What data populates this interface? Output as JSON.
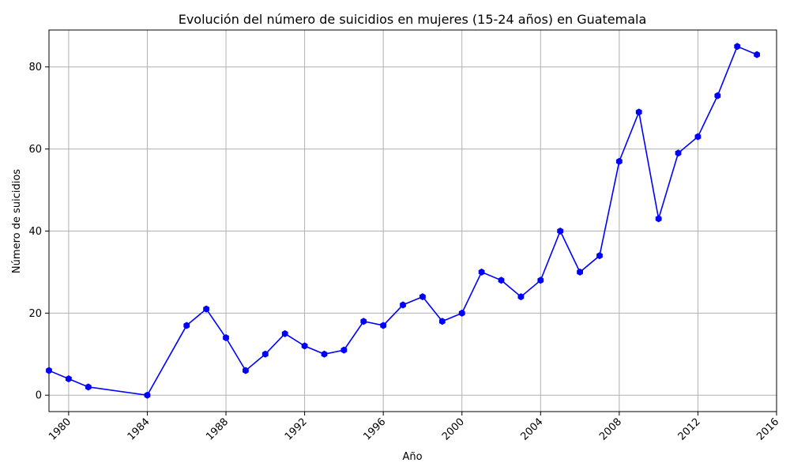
{
  "chart_data": {
    "type": "line",
    "title": "Evolución del número de suicidios en mujeres (15-24 años) en Guatemala",
    "xlabel": "Año",
    "ylabel": "Número de suicidios",
    "xlim": [
      1979,
      2016
    ],
    "ylim": [
      -4,
      89
    ],
    "x_ticks": [
      1980,
      1984,
      1988,
      1992,
      1996,
      2000,
      2004,
      2008,
      2012,
      2016
    ],
    "y_ticks": [
      0,
      20,
      40,
      60,
      80
    ],
    "grid": true,
    "x_tick_rotation": 45,
    "series": [
      {
        "color": "#0000ff",
        "marker": "hexagon",
        "x": [
          1979,
          1980,
          1981,
          1984,
          1986,
          1987,
          1988,
          1989,
          1990,
          1991,
          1992,
          1993,
          1994,
          1995,
          1996,
          1997,
          1998,
          1999,
          2000,
          2001,
          2002,
          2003,
          2004,
          2005,
          2006,
          2007,
          2008,
          2009,
          2010,
          2011,
          2012,
          2013,
          2014,
          2015
        ],
        "values": [
          6,
          4,
          2,
          0,
          17,
          21,
          14,
          6,
          10,
          15,
          12,
          10,
          11,
          18,
          17,
          22,
          24,
          18,
          20,
          30,
          28,
          24,
          28,
          40,
          30,
          34,
          57,
          69,
          43,
          59,
          63,
          73,
          85,
          83
        ]
      }
    ]
  }
}
